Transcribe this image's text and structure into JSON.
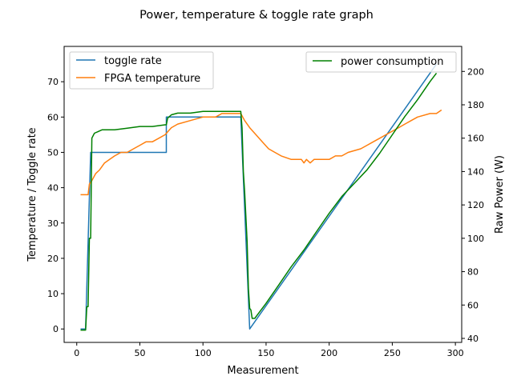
{
  "chart_data": {
    "type": "line",
    "title": "Power, temperature & toggle rate graph",
    "xlabel": "Measurement",
    "ylabel_left": "Temperature / Toggle rate",
    "ylabel_right": "Raw Power (W)",
    "xlim": [
      -10,
      305
    ],
    "ylim_left": [
      -3.8,
      80
    ],
    "ylim_right": [
      37.6,
      215
    ],
    "x_ticks": [
      0,
      50,
      100,
      150,
      200,
      250,
      300
    ],
    "y_left_ticks": [
      0,
      10,
      20,
      30,
      40,
      50,
      60,
      70
    ],
    "y_right_ticks": [
      40,
      60,
      80,
      100,
      120,
      140,
      160,
      180,
      200
    ],
    "grid": false,
    "legend_left": {
      "placement": "upper-left",
      "entries": [
        "toggle rate",
        "FPGA temperature"
      ]
    },
    "legend_right": {
      "placement": "upper-right",
      "entries": [
        "power consumption"
      ]
    },
    "series": [
      {
        "name": "toggle rate",
        "axis": "left",
        "color": "#1f77b4",
        "points": [
          [
            3,
            0
          ],
          [
            7,
            0
          ],
          [
            11,
            50
          ],
          [
            71,
            50
          ],
          [
            71,
            60
          ],
          [
            130,
            60
          ],
          [
            137,
            0
          ],
          [
            285,
            75
          ]
        ]
      },
      {
        "name": "FPGA temperature",
        "axis": "left",
        "color": "#ff7f0e",
        "points": [
          [
            3,
            38
          ],
          [
            9,
            38
          ],
          [
            10,
            41
          ],
          [
            12,
            42
          ],
          [
            15,
            44
          ],
          [
            18,
            45
          ],
          [
            22,
            47
          ],
          [
            26,
            48
          ],
          [
            30,
            49
          ],
          [
            35,
            50
          ],
          [
            40,
            50
          ],
          [
            45,
            51
          ],
          [
            50,
            52
          ],
          [
            55,
            53
          ],
          [
            60,
            53
          ],
          [
            65,
            54
          ],
          [
            70,
            55
          ],
          [
            75,
            57
          ],
          [
            80,
            58
          ],
          [
            90,
            59
          ],
          [
            100,
            60
          ],
          [
            110,
            60
          ],
          [
            115,
            61
          ],
          [
            120,
            61
          ],
          [
            125,
            61
          ],
          [
            130,
            61
          ],
          [
            133,
            59
          ],
          [
            137,
            57
          ],
          [
            142,
            55
          ],
          [
            147,
            53
          ],
          [
            152,
            51
          ],
          [
            157,
            50
          ],
          [
            162,
            49
          ],
          [
            170,
            48
          ],
          [
            178,
            48
          ],
          [
            180,
            47
          ],
          [
            182,
            48
          ],
          [
            185,
            47
          ],
          [
            188,
            48
          ],
          [
            195,
            48
          ],
          [
            200,
            48
          ],
          [
            205,
            49
          ],
          [
            210,
            49
          ],
          [
            215,
            50
          ],
          [
            225,
            51
          ],
          [
            230,
            52
          ],
          [
            235,
            53
          ],
          [
            240,
            54
          ],
          [
            245,
            55
          ],
          [
            250,
            56
          ],
          [
            255,
            57
          ],
          [
            260,
            58
          ],
          [
            265,
            59
          ],
          [
            270,
            60
          ],
          [
            280,
            61
          ],
          [
            285,
            61
          ],
          [
            289,
            62
          ]
        ]
      },
      {
        "name": "power consumption",
        "axis": "right",
        "color": "#008000",
        "points": [
          [
            3,
            45
          ],
          [
            7,
            45
          ],
          [
            8,
            59
          ],
          [
            9,
            59
          ],
          [
            10,
            100
          ],
          [
            11,
            100
          ],
          [
            12,
            160
          ],
          [
            14,
            163
          ],
          [
            17,
            164
          ],
          [
            20,
            165
          ],
          [
            30,
            165
          ],
          [
            40,
            166
          ],
          [
            50,
            167
          ],
          [
            60,
            167
          ],
          [
            70,
            168
          ],
          [
            71,
            168
          ],
          [
            72,
            172
          ],
          [
            75,
            174
          ],
          [
            80,
            175
          ],
          [
            90,
            175
          ],
          [
            100,
            176
          ],
          [
            110,
            176
          ],
          [
            120,
            176
          ],
          [
            130,
            176
          ],
          [
            131,
            166
          ],
          [
            132,
            140
          ],
          [
            133,
            128
          ],
          [
            135,
            98
          ],
          [
            136,
            70
          ],
          [
            137,
            58
          ],
          [
            138,
            57
          ],
          [
            139,
            52
          ],
          [
            141,
            52
          ],
          [
            145,
            56
          ],
          [
            150,
            61
          ],
          [
            160,
            72
          ],
          [
            170,
            83
          ],
          [
            180,
            93
          ],
          [
            190,
            104
          ],
          [
            200,
            115
          ],
          [
            210,
            125
          ],
          [
            220,
            133
          ],
          [
            230,
            141
          ],
          [
            240,
            151
          ],
          [
            250,
            162
          ],
          [
            260,
            173
          ],
          [
            270,
            183
          ],
          [
            280,
            194
          ],
          [
            285,
            199
          ]
        ]
      }
    ]
  }
}
